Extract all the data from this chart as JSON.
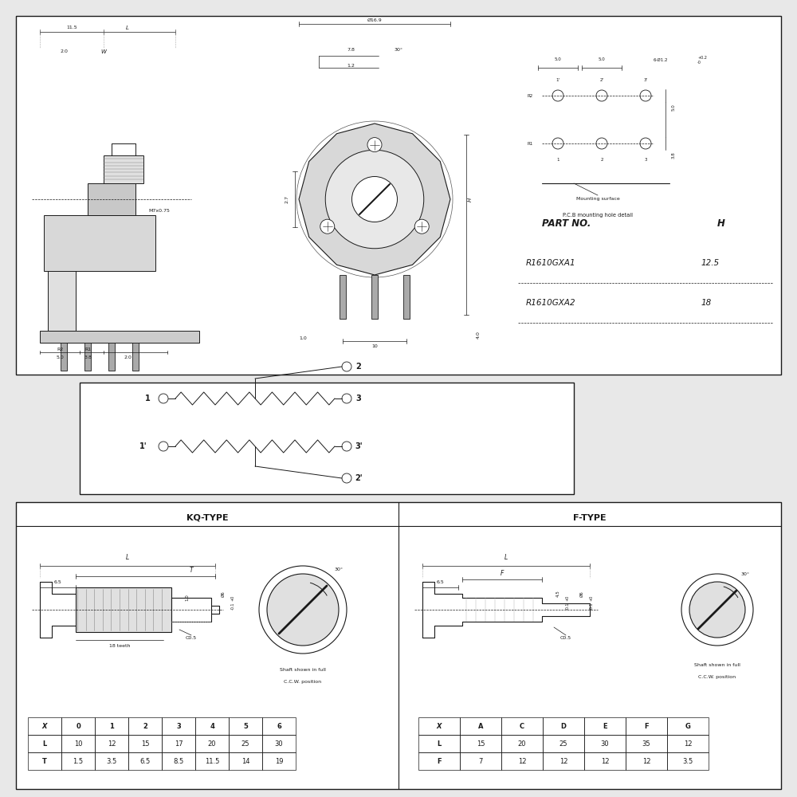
{
  "bg_color": "#e8e8e8",
  "panel_color": "#ffffff",
  "line_color": "#1a1a1a",
  "part_no_label": "PART NO.",
  "part_no_col": "H",
  "parts": [
    {
      "name": "R1610GXA1",
      "value": "12.5"
    },
    {
      "name": "R1610GXA2",
      "value": "18"
    }
  ],
  "kq_table_x": [
    "X",
    "0",
    "1",
    "2",
    "3",
    "4",
    "5",
    "6"
  ],
  "kq_table_L": [
    "L",
    "10",
    "12",
    "15",
    "17",
    "20",
    "25",
    "30"
  ],
  "kq_table_T": [
    "T",
    "1.5",
    "3.5",
    "6.5",
    "8.5",
    "11.5",
    "14",
    "19"
  ],
  "f_table_x": [
    "X",
    "A",
    "C",
    "D",
    "E",
    "F",
    "G"
  ],
  "f_table_L": [
    "L",
    "15",
    "20",
    "25",
    "30",
    "35",
    "12"
  ],
  "f_table_F": [
    "F",
    "7",
    "12",
    "12",
    "12",
    "12",
    "3.5"
  ]
}
